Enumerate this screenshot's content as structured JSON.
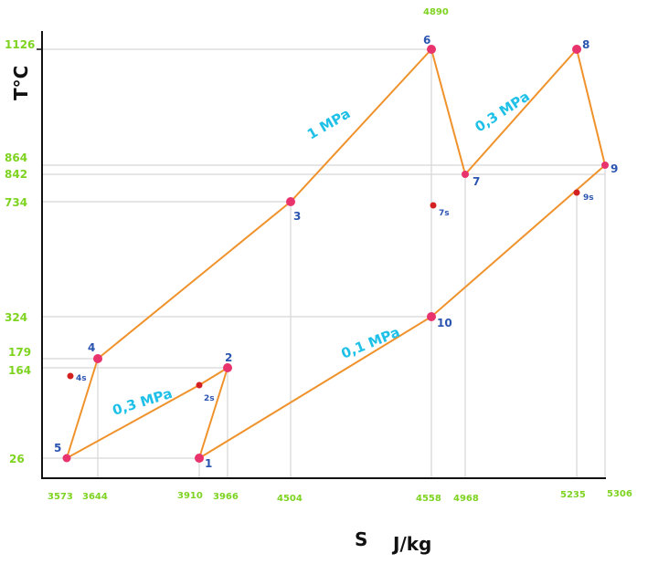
{
  "axes": {
    "x_title": "S",
    "x_unit": "J/kg",
    "y_title": "T°C"
  },
  "x_ticks": [
    "3573",
    "3644",
    "3910",
    "3966",
    "4504",
    "4558",
    "4968",
    "5235",
    "5306",
    "4890"
  ],
  "y_ticks": [
    "1126",
    "864",
    "842",
    "734",
    "324",
    "179",
    "164",
    "26"
  ],
  "points": [
    {
      "id": "1",
      "label": "1",
      "kind": "main"
    },
    {
      "id": "2",
      "label": "2",
      "kind": "main"
    },
    {
      "id": "2s",
      "label": "2s",
      "kind": "isentropic"
    },
    {
      "id": "3",
      "label": "3",
      "kind": "main"
    },
    {
      "id": "4",
      "label": "4",
      "kind": "main"
    },
    {
      "id": "4s",
      "label": "4s",
      "kind": "isentropic"
    },
    {
      "id": "5",
      "label": "5",
      "kind": "main"
    },
    {
      "id": "6",
      "label": "6",
      "kind": "main"
    },
    {
      "id": "7",
      "label": "7",
      "kind": "main"
    },
    {
      "id": "7s",
      "label": "7s",
      "kind": "isentropic"
    },
    {
      "id": "8",
      "label": "8",
      "kind": "main"
    },
    {
      "id": "9",
      "label": "9",
      "kind": "main"
    },
    {
      "id": "9s",
      "label": "9s",
      "kind": "isentropic"
    },
    {
      "id": "10",
      "label": "10",
      "kind": "main"
    }
  ],
  "pressure_labels": {
    "p1": "1 MPa",
    "p2": "0,3 MPa",
    "p3": "0,3 MPa",
    "p4": "0,1 MPa"
  },
  "colors": {
    "cycle_line": "#f0922b",
    "point_main": "#e8336d",
    "point_isentropic": "#d42020",
    "tick_text": "#7ed321",
    "point_label": "#2a54b0",
    "pressure_text": "#1fc0e8"
  }
}
